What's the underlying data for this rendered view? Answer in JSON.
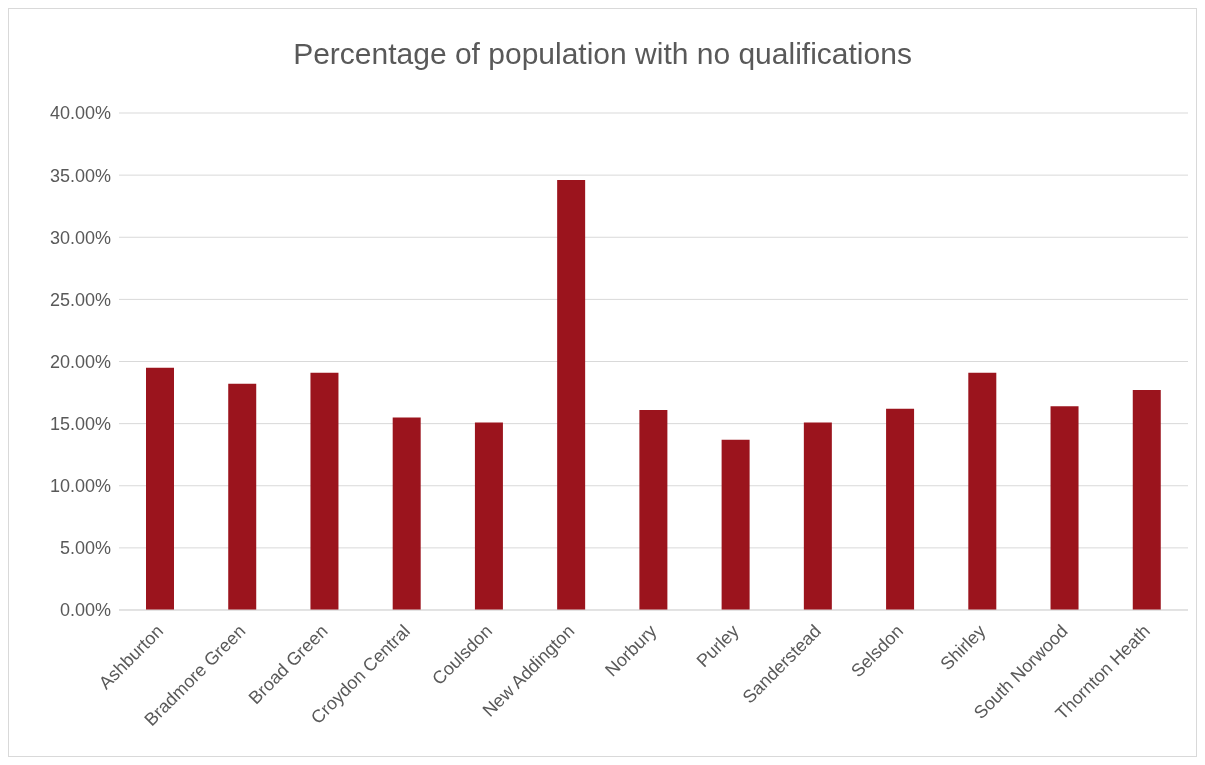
{
  "chart_data": {
    "type": "bar",
    "title": "Percentage of population with no qualifications",
    "categories": [
      "Ashburton",
      "Bradmore Green",
      "Broad Green",
      "Croydon Central",
      "Coulsdon",
      "New Addington",
      "Norbury",
      "Purley",
      "Sanderstead",
      "Selsdon",
      "Shirley",
      "South Norwood",
      "Thornton Heath"
    ],
    "values": [
      19.5,
      18.2,
      19.1,
      15.5,
      15.1,
      34.6,
      16.1,
      13.7,
      15.1,
      16.2,
      19.1,
      16.4,
      17.7
    ],
    "color": "#9b141d",
    "ylim": [
      0,
      40
    ],
    "yticks": [
      {
        "value": 0,
        "label": "0.00%"
      },
      {
        "value": 5,
        "label": "5.00%"
      },
      {
        "value": 10,
        "label": "10.00%"
      },
      {
        "value": 15,
        "label": "15.00%"
      },
      {
        "value": 20,
        "label": "20.00%"
      },
      {
        "value": 25,
        "label": "25.00%"
      },
      {
        "value": 30,
        "label": "30.00%"
      },
      {
        "value": 35,
        "label": "35.00%"
      },
      {
        "value": 40,
        "label": "40.00%"
      }
    ],
    "grid": "y"
  }
}
